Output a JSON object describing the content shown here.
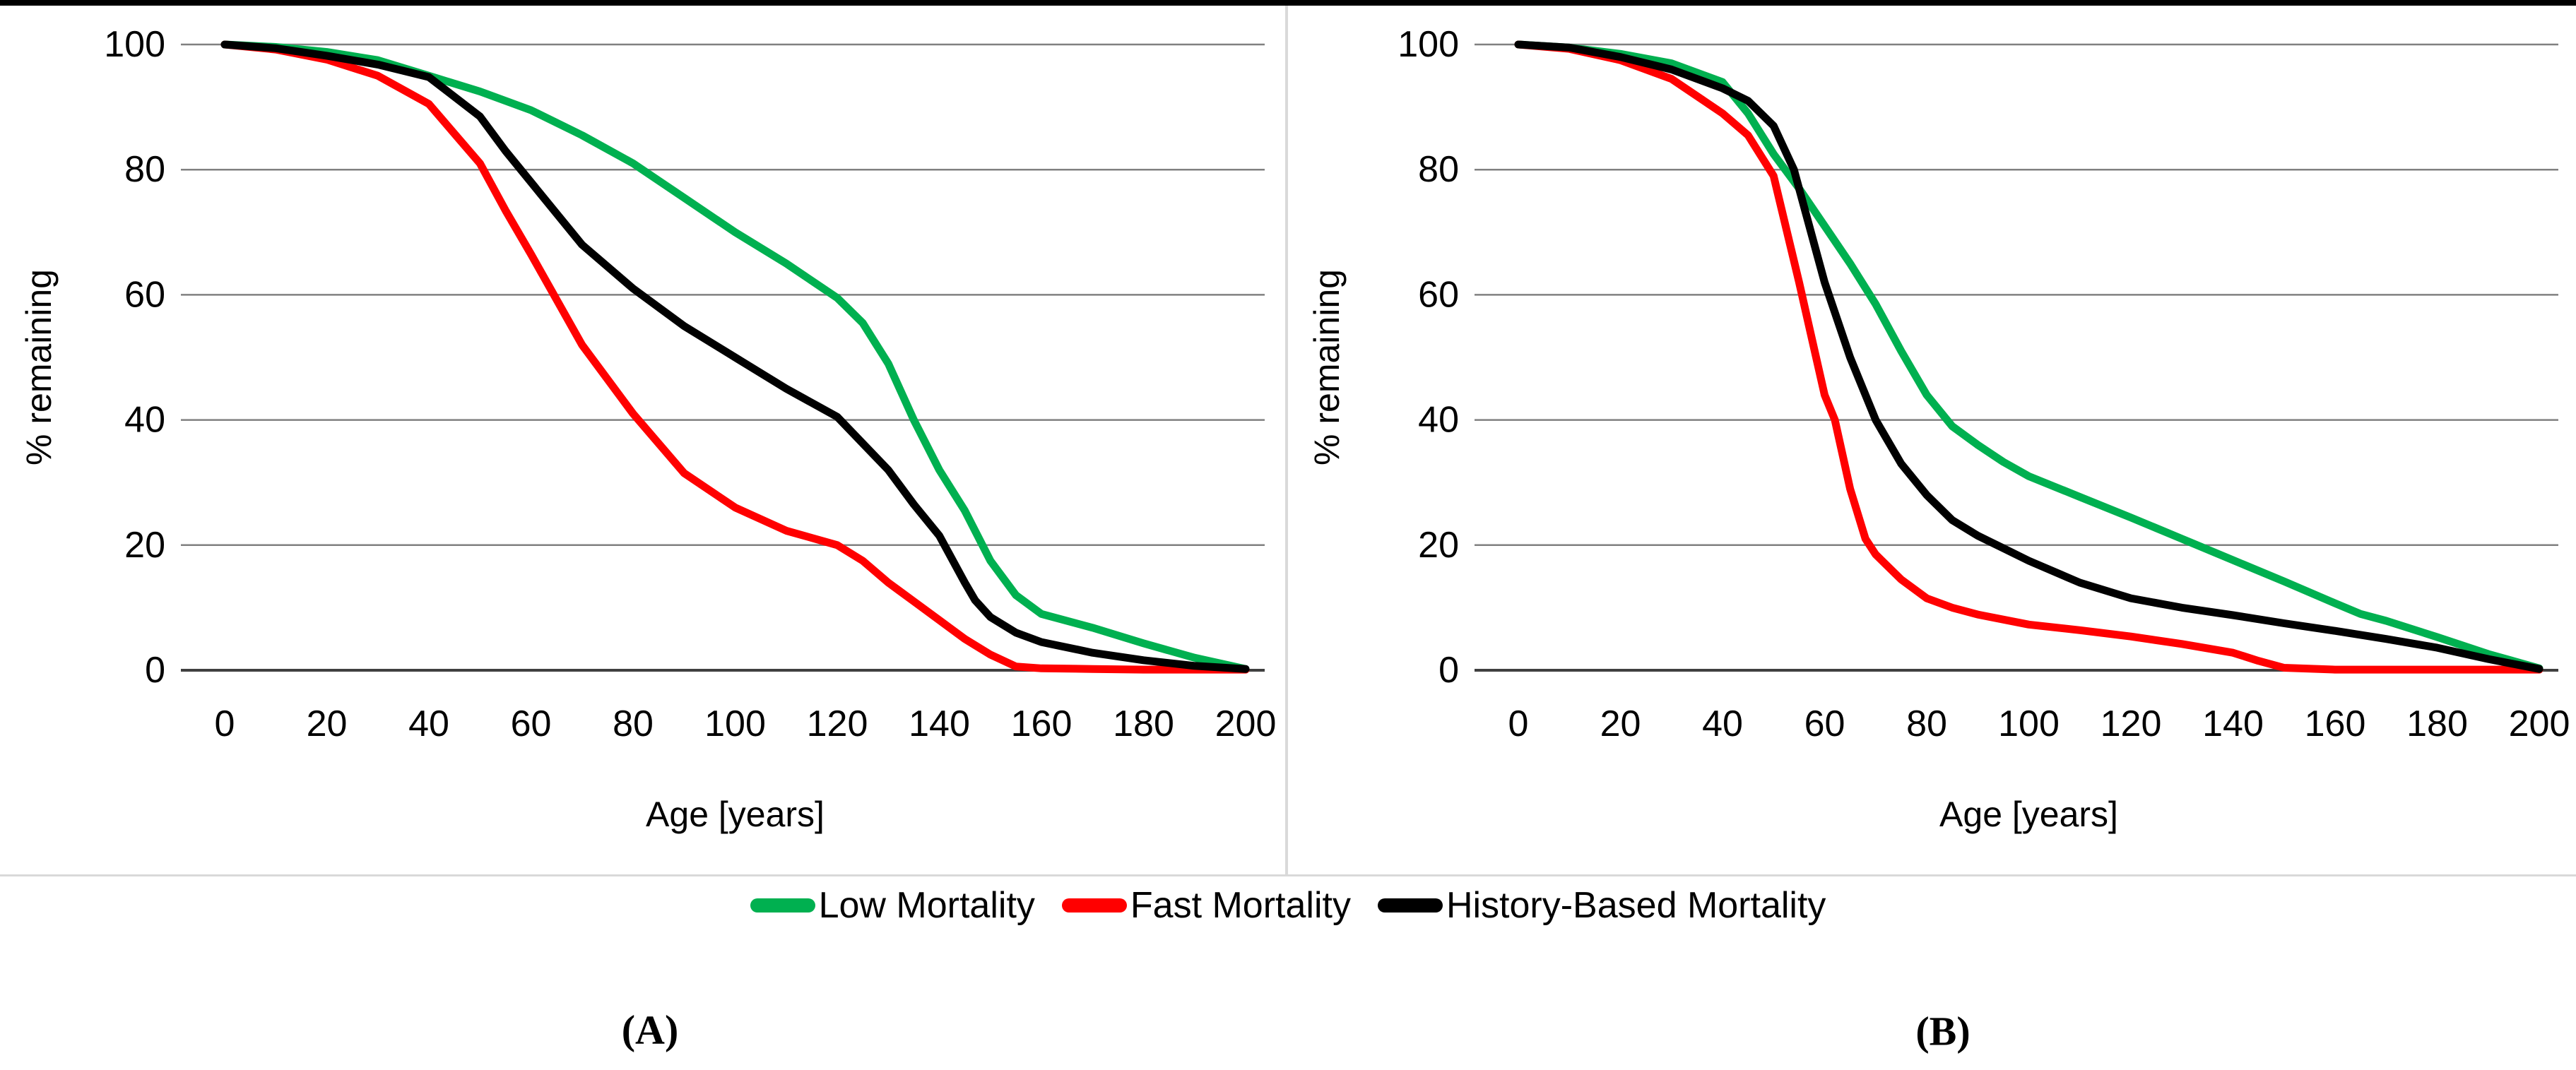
{
  "figure": {
    "captions": {
      "a": "(A)",
      "b": "(B)"
    },
    "legend": {
      "items": [
        {
          "label": "Low Mortality",
          "color": "#00B050"
        },
        {
          "label": "Fast Mortality",
          "color": "#FF0000"
        },
        {
          "label": "History-Based Mortality",
          "color": "#000000"
        }
      ]
    },
    "colors": {
      "grid": "#808080",
      "zero_axis": "#404040",
      "divider": "#d9d9d9",
      "top_border": "#000000"
    }
  },
  "chart_data": [
    {
      "id": "A",
      "type": "line",
      "title": "",
      "xlabel": "Age [years]",
      "ylabel": "% remaining",
      "xlim": [
        0,
        200
      ],
      "ylim": [
        0,
        100
      ],
      "xticks": [
        0,
        20,
        40,
        60,
        80,
        100,
        120,
        140,
        160,
        180,
        200
      ],
      "yticks": [
        0,
        20,
        40,
        60,
        80,
        100
      ],
      "grid": "horizontal",
      "legend_position": "below-figure",
      "series": [
        {
          "name": "Low Mortality",
          "color": "#00B050",
          "points": [
            [
              0,
              100
            ],
            [
              10,
              99.6
            ],
            [
              20,
              98.8
            ],
            [
              30,
              97.5
            ],
            [
              40,
              95
            ],
            [
              50,
              92.5
            ],
            [
              60,
              89.5
            ],
            [
              70,
              85.5
            ],
            [
              80,
              81
            ],
            [
              90,
              75.5
            ],
            [
              100,
              70
            ],
            [
              110,
              65
            ],
            [
              120,
              59.5
            ],
            [
              125,
              55.5
            ],
            [
              130,
              49
            ],
            [
              135,
              40
            ],
            [
              140,
              32
            ],
            [
              145,
              25.5
            ],
            [
              150,
              17.5
            ],
            [
              155,
              12
            ],
            [
              160,
              9
            ],
            [
              170,
              6.8
            ],
            [
              180,
              4.3
            ],
            [
              190,
              2
            ],
            [
              200,
              0.2
            ]
          ]
        },
        {
          "name": "Fast Mortality",
          "color": "#FF0000",
          "points": [
            [
              0,
              100
            ],
            [
              10,
              99.2
            ],
            [
              20,
              97.6
            ],
            [
              30,
              95
            ],
            [
              40,
              90.5
            ],
            [
              50,
              81
            ],
            [
              55,
              73.5
            ],
            [
              60,
              66.5
            ],
            [
              70,
              52
            ],
            [
              80,
              41
            ],
            [
              90,
              31.5
            ],
            [
              100,
              26
            ],
            [
              110,
              22.3
            ],
            [
              120,
              20
            ],
            [
              125,
              17.5
            ],
            [
              130,
              14
            ],
            [
              135,
              11
            ],
            [
              140,
              8
            ],
            [
              145,
              5
            ],
            [
              150,
              2.5
            ],
            [
              155,
              0.6
            ],
            [
              160,
              0.3
            ],
            [
              170,
              0.2
            ],
            [
              180,
              0.1
            ],
            [
              190,
              0.1
            ],
            [
              200,
              0.1
            ]
          ]
        },
        {
          "name": "History-Based Mortality",
          "color": "#000000",
          "points": [
            [
              0,
              100
            ],
            [
              10,
              99.4
            ],
            [
              20,
              98.2
            ],
            [
              30,
              96.8
            ],
            [
              40,
              94.8
            ],
            [
              50,
              88.5
            ],
            [
              55,
              83
            ],
            [
              60,
              78
            ],
            [
              70,
              68
            ],
            [
              80,
              61
            ],
            [
              90,
              55
            ],
            [
              100,
              50
            ],
            [
              110,
              45
            ],
            [
              120,
              40.5
            ],
            [
              130,
              32
            ],
            [
              135,
              26.5
            ],
            [
              140,
              21.5
            ],
            [
              145,
              14
            ],
            [
              147,
              11.2
            ],
            [
              150,
              8.5
            ],
            [
              155,
              6
            ],
            [
              160,
              4.5
            ],
            [
              170,
              2.8
            ],
            [
              180,
              1.6
            ],
            [
              190,
              0.7
            ],
            [
              200,
              0.2
            ]
          ]
        }
      ]
    },
    {
      "id": "B",
      "type": "line",
      "title": "",
      "xlabel": "Age [years]",
      "ylabel": "% remaining",
      "xlim": [
        0,
        200
      ],
      "ylim": [
        0,
        100
      ],
      "xticks": [
        0,
        20,
        40,
        60,
        80,
        100,
        120,
        140,
        160,
        180,
        200
      ],
      "yticks": [
        0,
        20,
        40,
        60,
        80,
        100
      ],
      "grid": "horizontal",
      "legend_position": "below-figure",
      "series": [
        {
          "name": "Low Mortality",
          "color": "#00B050",
          "points": [
            [
              0,
              100
            ],
            [
              10,
              99.5
            ],
            [
              20,
              98.5
            ],
            [
              30,
              97
            ],
            [
              40,
              94
            ],
            [
              45,
              89
            ],
            [
              50,
              82.5
            ],
            [
              55,
              77
            ],
            [
              60,
              71
            ],
            [
              65,
              65
            ],
            [
              70,
              58.5
            ],
            [
              75,
              51
            ],
            [
              80,
              44
            ],
            [
              85,
              39
            ],
            [
              90,
              36
            ],
            [
              95,
              33.3
            ],
            [
              100,
              31
            ],
            [
              110,
              27.7
            ],
            [
              120,
              24.4
            ],
            [
              130,
              21
            ],
            [
              140,
              17.6
            ],
            [
              150,
              14.2
            ],
            [
              160,
              10.7
            ],
            [
              165,
              9
            ],
            [
              170,
              7.9
            ],
            [
              180,
              5.3
            ],
            [
              190,
              2.6
            ],
            [
              200,
              0.3
            ]
          ]
        },
        {
          "name": "Fast Mortality",
          "color": "#FF0000",
          "points": [
            [
              0,
              100
            ],
            [
              10,
              99.3
            ],
            [
              20,
              97.5
            ],
            [
              30,
              94.5
            ],
            [
              40,
              89
            ],
            [
              45,
              85.5
            ],
            [
              50,
              79
            ],
            [
              55,
              62
            ],
            [
              60,
              44
            ],
            [
              62,
              40
            ],
            [
              65,
              29
            ],
            [
              68,
              21
            ],
            [
              70,
              18.5
            ],
            [
              75,
              14.5
            ],
            [
              80,
              11.5
            ],
            [
              85,
              10
            ],
            [
              90,
              8.9
            ],
            [
              100,
              7.3
            ],
            [
              110,
              6.4
            ],
            [
              120,
              5.4
            ],
            [
              130,
              4.2
            ],
            [
              140,
              2.8
            ],
            [
              145,
              1.5
            ],
            [
              150,
              0.4
            ],
            [
              160,
              0.1
            ],
            [
              170,
              0.1
            ],
            [
              180,
              0.1
            ],
            [
              190,
              0.1
            ],
            [
              200,
              0.1
            ]
          ]
        },
        {
          "name": "History-Based Mortality",
          "color": "#000000",
          "points": [
            [
              0,
              100
            ],
            [
              10,
              99.5
            ],
            [
              20,
              98
            ],
            [
              30,
              96
            ],
            [
              40,
              93
            ],
            [
              45,
              91
            ],
            [
              50,
              87
            ],
            [
              54,
              80
            ],
            [
              60,
              62
            ],
            [
              65,
              50
            ],
            [
              70,
              40
            ],
            [
              75,
              33
            ],
            [
              80,
              28
            ],
            [
              85,
              24
            ],
            [
              90,
              21.5
            ],
            [
              95,
              19.5
            ],
            [
              100,
              17.5
            ],
            [
              110,
              14
            ],
            [
              120,
              11.5
            ],
            [
              130,
              10
            ],
            [
              140,
              8.8
            ],
            [
              150,
              7.5
            ],
            [
              160,
              6.3
            ],
            [
              170,
              5
            ],
            [
              180,
              3.6
            ],
            [
              190,
              1.8
            ],
            [
              200,
              0.2
            ]
          ]
        }
      ]
    }
  ]
}
